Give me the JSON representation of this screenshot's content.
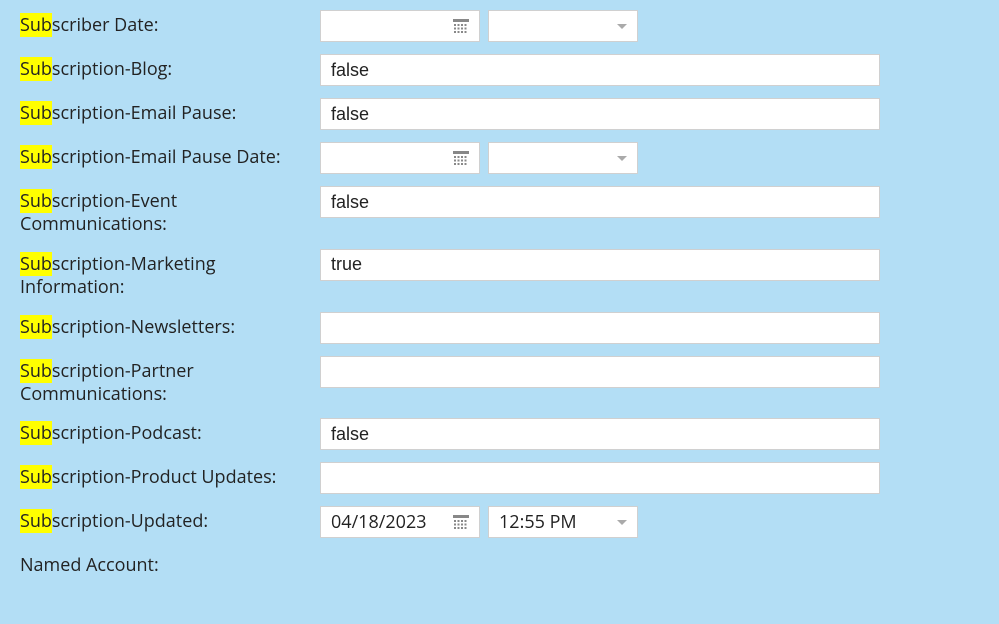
{
  "highlight_prefix": "Sub",
  "rows": [
    {
      "id": "subscriber-date",
      "label_rest": "scriber Date:",
      "type": "datetime",
      "date": "",
      "time": ""
    },
    {
      "id": "subscription-blog",
      "label_rest": "scription-Blog:",
      "type": "text",
      "value": "false"
    },
    {
      "id": "subscription-email-pause",
      "label_rest": "scription-Email Pause:",
      "type": "text",
      "value": "false"
    },
    {
      "id": "subscription-email-pause-date",
      "label_rest": "scription-Email Pause Date:",
      "type": "datetime",
      "date": "",
      "time": ""
    },
    {
      "id": "subscription-event-communications",
      "label_rest": "scription-Event Communications:",
      "type": "text",
      "value": "false"
    },
    {
      "id": "subscription-marketing-information",
      "label_rest": "scription-Marketing Information:",
      "type": "text",
      "value": "true"
    },
    {
      "id": "subscription-newsletters",
      "label_rest": "scription-Newsletters:",
      "type": "text",
      "value": ""
    },
    {
      "id": "subscription-partner-communications",
      "label_rest": "scription-Partner Communications:",
      "type": "text",
      "value": ""
    },
    {
      "id": "subscription-podcast",
      "label_rest": "scription-Podcast:",
      "type": "text",
      "value": "false"
    },
    {
      "id": "subscription-product-updates",
      "label_rest": "scription-Product Updates:",
      "type": "text",
      "value": ""
    },
    {
      "id": "subscription-updated",
      "label_rest": "scription-Updated:",
      "type": "datetime",
      "date": "04/18/2023",
      "time": "12:55 PM"
    },
    {
      "id": "named-account",
      "label_full": "Named Account:",
      "no_highlight": true,
      "type": "none"
    }
  ],
  "colors": {
    "page_bg": "#b3def5",
    "input_bg": "#ffffff",
    "input_border": "#d0d0d0",
    "highlight_bg": "#ffff00",
    "text": "#222222",
    "icon": "#888888",
    "chevron": "#aaaaaa"
  }
}
